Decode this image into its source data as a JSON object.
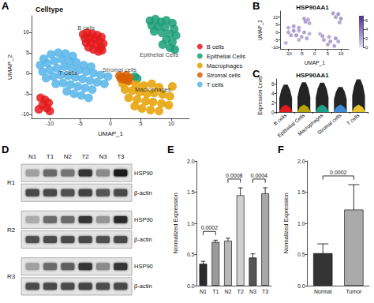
{
  "chart_data": [
    {
      "panel": "A",
      "type": "scatter",
      "title": "Celltype",
      "x_label": "UMAP_1",
      "y_label": "UMAP_2",
      "xlim": [
        -13,
        13
      ],
      "xticks": [
        -10,
        -5,
        0,
        5,
        10
      ],
      "ylim": [
        -11,
        14
      ],
      "yticks": [
        -10,
        -5,
        0,
        5,
        10
      ],
      "grid": false,
      "legend": "right",
      "series": [
        {
          "name": "B cells",
          "color": "#E41A1C",
          "points": [
            [
              -4.5,
              9.5
            ],
            [
              -3.8,
              9.8
            ],
            [
              -3,
              9.6
            ],
            [
              -2.2,
              9.3
            ],
            [
              -1.5,
              8.8
            ],
            [
              -4.2,
              8.5
            ],
            [
              -3.4,
              8.6
            ],
            [
              -2.6,
              8.4
            ],
            [
              -1.8,
              7.8
            ],
            [
              -1.2,
              7.2
            ],
            [
              -4,
              7.4
            ],
            [
              -3.2,
              7.5
            ],
            [
              -2.4,
              7
            ],
            [
              -1.6,
              6.3
            ],
            [
              -3.6,
              6.3
            ],
            [
              -2.8,
              5.8
            ],
            [
              -2,
              5.3
            ],
            [
              -1.4,
              5.6
            ],
            [
              -11.5,
              -6
            ],
            [
              -10.8,
              -6.5
            ],
            [
              -10.2,
              -7.2
            ],
            [
              -11.2,
              -7.8
            ],
            [
              -10.5,
              -8.5
            ],
            [
              -11.8,
              -8.8
            ],
            [
              -10,
              -9.2
            ]
          ]
        },
        {
          "name": "Epithelial Cells",
          "color": "#1B9E77",
          "points": [
            [
              6.5,
              12.8
            ],
            [
              7.4,
              13.2
            ],
            [
              8.3,
              12.5
            ],
            [
              9.2,
              12.9
            ],
            [
              10.2,
              12.2
            ],
            [
              6.8,
              11.6
            ],
            [
              7.8,
              11.4
            ],
            [
              9,
              11.2
            ],
            [
              10.5,
              10.8
            ],
            [
              7.2,
              10.2
            ],
            [
              8.5,
              9.8
            ],
            [
              9.8,
              9.6
            ],
            [
              10.8,
              9.2
            ],
            [
              9.2,
              8.2
            ],
            [
              10.2,
              7.6
            ],
            [
              8.6,
              7
            ],
            [
              9.8,
              6.2
            ],
            [
              10.6,
              5.8
            ],
            [
              4,
              -0.8
            ],
            [
              4.4,
              -1.3
            ]
          ]
        },
        {
          "name": "Macrophages",
          "color": "#E6A000",
          "points": [
            [
              2,
              -2.5
            ],
            [
              3,
              -2
            ],
            [
              4.2,
              -2.8
            ],
            [
              5.5,
              -3
            ],
            [
              6.8,
              -2.6
            ],
            [
              8,
              -3.4
            ],
            [
              2.4,
              -4
            ],
            [
              3.6,
              -4.2
            ],
            [
              4.8,
              -4.6
            ],
            [
              6,
              -5
            ],
            [
              7.2,
              -4.8
            ],
            [
              8.6,
              -5.2
            ],
            [
              9.8,
              -5.6
            ],
            [
              3,
              -6
            ],
            [
              4.4,
              -6.4
            ],
            [
              5.8,
              -6.8
            ],
            [
              7,
              -7
            ],
            [
              8.4,
              -7.4
            ],
            [
              9.6,
              -7.8
            ],
            [
              4,
              -8
            ],
            [
              5.2,
              -8.6
            ],
            [
              6.6,
              -9
            ],
            [
              8,
              -9.2
            ],
            [
              10.2,
              -3.2
            ]
          ]
        },
        {
          "name": "Stromal cells",
          "color": "#D95F02",
          "points": [
            [
              1.5,
              -0.6
            ],
            [
              2,
              -0.9
            ],
            [
              2.6,
              -0.5
            ],
            [
              3.1,
              -1.1
            ],
            [
              2.2,
              -1.5
            ],
            [
              2.9,
              -1.8
            ],
            [
              1.7,
              -1.3
            ]
          ]
        },
        {
          "name": "T cells",
          "color": "#56B4E9",
          "points": [
            [
              -11,
              3.5
            ],
            [
              -9.8,
              4.6
            ],
            [
              -8.6,
              5
            ],
            [
              -7.4,
              4.8
            ],
            [
              -6.2,
              4.2
            ],
            [
              -11.6,
              2
            ],
            [
              -10.4,
              2.4
            ],
            [
              -9.2,
              3
            ],
            [
              -8,
              3.4
            ],
            [
              -6.8,
              3
            ],
            [
              -5.6,
              2.6
            ],
            [
              -4.4,
              2
            ],
            [
              -3.2,
              1.6
            ],
            [
              -11.2,
              0.4
            ],
            [
              -10,
              0.8
            ],
            [
              -8.8,
              1.2
            ],
            [
              -7.6,
              1.6
            ],
            [
              -6.4,
              1.2
            ],
            [
              -5.2,
              0.8
            ],
            [
              -4,
              0.4
            ],
            [
              -2.8,
              0
            ],
            [
              -1.6,
              -0.4
            ],
            [
              -0.4,
              -0.8
            ],
            [
              -10.6,
              -1.2
            ],
            [
              -9.4,
              -0.8
            ],
            [
              -8.2,
              -0.4
            ],
            [
              -7,
              -0.6
            ],
            [
              -5.8,
              -1
            ],
            [
              -4.6,
              -1.4
            ],
            [
              -3.4,
              -1.8
            ],
            [
              -2.2,
              -2.2
            ],
            [
              -1,
              -2.6
            ],
            [
              -9,
              -2.6
            ],
            [
              -7.8,
              -2.4
            ],
            [
              -6.6,
              -2.8
            ],
            [
              -5.4,
              -3.2
            ],
            [
              -4.2,
              -3.6
            ],
            [
              -3,
              -4
            ],
            [
              -7.2,
              -4.4
            ],
            [
              -6,
              -5
            ],
            [
              -4.8,
              -5.4
            ],
            [
              -3.6,
              -6
            ]
          ]
        }
      ],
      "annotations": [
        {
          "text": "B cells",
          "x": -4,
          "y": 11
        },
        {
          "text": "Epithelial Cells",
          "x": 8,
          "y": 4.5
        },
        {
          "text": "Macrophages",
          "x": 7,
          "y": -4
        },
        {
          "text": "Stromal cells",
          "x": 1.5,
          "y": 0.8
        },
        {
          "text": "T Cells",
          "x": -7,
          "y": 0
        }
      ]
    },
    {
      "panel": "B",
      "type": "scatter",
      "title": "HSP90AA1",
      "x_label": "UMAP_1",
      "y_label": "UMAP_2",
      "xlim": [
        -13,
        13
      ],
      "xticks": [
        -10,
        -5,
        0,
        5,
        10
      ],
      "ylim": [
        -11,
        14
      ],
      "yticks": [
        -10,
        -5,
        0,
        5,
        10
      ],
      "grid": false,
      "points": [
        [
          -10,
          3,
          2.5
        ],
        [
          -8,
          4,
          3.2
        ],
        [
          -6,
          3,
          2.8
        ],
        [
          -10,
          0,
          3
        ],
        [
          -8,
          1,
          3.5
        ],
        [
          -6,
          1,
          2.6
        ],
        [
          -4,
          0,
          3.1
        ],
        [
          -2,
          -1,
          2.4
        ],
        [
          -9,
          -2,
          2.9
        ],
        [
          -7,
          -2,
          3.6
        ],
        [
          -5,
          -3,
          2.7
        ],
        [
          -3,
          -4,
          3
        ],
        [
          -6,
          -5,
          2.5
        ],
        [
          -11,
          -7,
          2.2
        ],
        [
          -4,
          9,
          3
        ],
        [
          -2.5,
          8.5,
          2.6
        ],
        [
          -3.5,
          7,
          3.3
        ],
        [
          -2,
          6,
          2.8
        ],
        [
          7,
          12.5,
          3.4
        ],
        [
          9,
          12,
          3.8
        ],
        [
          8,
          10,
          3.1
        ],
        [
          10,
          9,
          3.5
        ],
        [
          9.5,
          6.5,
          2.9
        ],
        [
          2,
          -1,
          2.1
        ],
        [
          3,
          -2.5,
          3.2
        ],
        [
          5.5,
          -3,
          2.8
        ],
        [
          8,
          -4,
          3.5
        ],
        [
          3.5,
          -5,
          3
        ],
        [
          6,
          -6,
          3.3
        ],
        [
          9,
          -6,
          2.7
        ],
        [
          5,
          -8,
          3.1
        ],
        [
          7.5,
          -9,
          2.9
        ]
      ],
      "colorbar": {
        "range": [
          0,
          7
        ],
        "ticks": [
          0,
          2,
          4,
          6
        ]
      }
    },
    {
      "panel": "C",
      "type": "violin",
      "title": "HSP90AA1",
      "y_label": "Expression Level",
      "categories": [
        "B cells",
        "Epithelial Cells",
        "Macrophages",
        "Stromal cells",
        "T cells"
      ],
      "values": [
        5.8,
        6.3,
        6.2,
        5.3,
        6.9
      ],
      "colors": [
        "#E41A1C",
        "#B8A500",
        "#1FA187",
        "#3B8BD9",
        "#E6C229"
      ],
      "ylim": [
        0,
        7
      ],
      "yticks": [
        0,
        2,
        4,
        6
      ],
      "grid": false
    },
    {
      "panel": "D",
      "type": "blot",
      "lanes": [
        "N1",
        "T1",
        "N2",
        "T2",
        "N3",
        "T3"
      ],
      "replicates": [
        {
          "name": "R1",
          "bands": [
            {
              "label": "HSP90",
              "intensity": [
                0.35,
                0.6,
                0.55,
                0.85,
                0.45,
                0.95
              ]
            },
            {
              "label": "β-actin",
              "intensity": [
                0.75,
                0.75,
                0.72,
                0.78,
                0.7,
                0.76
              ]
            }
          ]
        },
        {
          "name": "R2",
          "bands": [
            {
              "label": "HSP90",
              "intensity": [
                0.3,
                0.6,
                0.6,
                0.85,
                0.4,
                0.9
              ]
            },
            {
              "label": "β-actin",
              "intensity": [
                0.72,
                0.74,
                0.75,
                0.76,
                0.72,
                0.75
              ]
            }
          ]
        },
        {
          "name": "R3",
          "bands": [
            {
              "label": "HSP90",
              "intensity": [
                0.35,
                0.6,
                0.65,
                0.85,
                0.45,
                0.85
              ]
            },
            {
              "label": "β-actin",
              "intensity": [
                0.74,
                0.76,
                0.74,
                0.77,
                0.73,
                0.76
              ]
            }
          ]
        }
      ]
    },
    {
      "panel": "E",
      "type": "bar",
      "y_label": "Normalized Expression",
      "categories": [
        "N1",
        "T1",
        "N2",
        "T2",
        "N3",
        "T3"
      ],
      "values": [
        0.35,
        0.7,
        0.72,
        1.45,
        0.45,
        1.48
      ],
      "errors": [
        0.04,
        0.03,
        0.04,
        0.12,
        0.06,
        0.09
      ],
      "colors": [
        "#2b2b2b",
        "#9a9a9a",
        "#b8b8b8",
        "#d0d0d0",
        "#555555",
        "#a8a8a8"
      ],
      "ylim": [
        0,
        2
      ],
      "yticks": [
        {
          "value": 0,
          "label": "0.0"
        },
        0.5,
        {
          "value": 1,
          "label": "1.0"
        },
        1.5,
        {
          "value": 2,
          "label": "2.0"
        }
      ],
      "grid": false,
      "comparisons": [
        {
          "pair": [
            "N1",
            "T1"
          ],
          "label": "0.0002"
        },
        {
          "pair": [
            "N2",
            "T2"
          ],
          "label": "0.0008"
        },
        {
          "pair": [
            "N3",
            "T3"
          ],
          "label": "0.0004"
        }
      ]
    },
    {
      "panel": "F",
      "type": "bar",
      "y_label": "Normalized Expression",
      "categories": [
        "Normal",
        "Tumor"
      ],
      "values": [
        0.52,
        1.22
      ],
      "errors": [
        0.15,
        0.4
      ],
      "colors": [
        "#333333",
        "#aaaaaa"
      ],
      "ylim": [
        0,
        2
      ],
      "yticks": [
        {
          "value": 0,
          "label": "0.0"
        },
        0.5,
        {
          "value": 1,
          "label": "1.0"
        },
        1.5,
        {
          "value": 2,
          "label": "2.0"
        }
      ],
      "grid": false,
      "comparisons": [
        {
          "pair": [
            "Normal",
            "Tumor"
          ],
          "label": "0.0002"
        }
      ]
    }
  ]
}
